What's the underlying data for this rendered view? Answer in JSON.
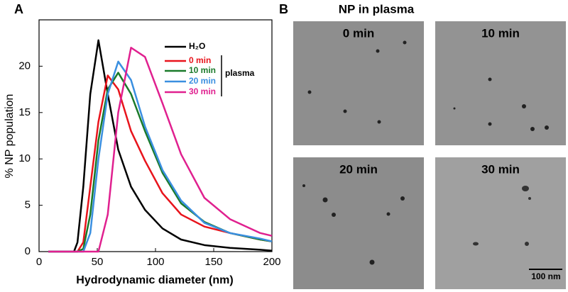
{
  "panel_labels": [
    "A",
    "B"
  ],
  "chart_data": {
    "type": "line",
    "xlabel": "Hydrodynamic diameter (nm)",
    "ylabel": "% NP population",
    "x": [
      8,
      20,
      30,
      33,
      38,
      44,
      51,
      59,
      68,
      79,
      91,
      106,
      122,
      142,
      164,
      190,
      200
    ],
    "series": [
      {
        "name": "H₂O",
        "color": "#000000",
        "values": [
          0,
          0,
          0,
          1,
          7,
          17,
          22.8,
          17,
          11,
          7,
          4.5,
          2.5,
          1.3,
          0.7,
          0.4,
          0.2,
          0.1
        ]
      },
      {
        "name": "0 min",
        "color": "#e8141c",
        "values": [
          0,
          0,
          0,
          0,
          1,
          7,
          14,
          19,
          17.5,
          13,
          9.8,
          6.3,
          4,
          2.7,
          2,
          1.3,
          1.1
        ]
      },
      {
        "name": "10 min",
        "color": "#1a7a2a",
        "values": [
          0,
          0,
          0,
          0,
          0.3,
          4,
          12,
          17.5,
          19.3,
          17,
          13,
          8.5,
          5.2,
          3.2,
          2,
          1.3,
          1.1
        ]
      },
      {
        "name": "20 min",
        "color": "#3a8fe0",
        "values": [
          0,
          0,
          0,
          0,
          0,
          2,
          10,
          17,
          20.5,
          18.5,
          13.5,
          8.8,
          5.5,
          3.1,
          2,
          1.4,
          1.1
        ]
      },
      {
        "name": "30 min",
        "color": "#e0208f",
        "values": [
          0,
          0,
          0,
          0,
          0,
          0,
          0,
          4,
          15,
          22,
          21,
          16,
          10.5,
          5.8,
          3.5,
          2,
          1.7
        ]
      }
    ],
    "legend_group": "plasma",
    "xlim": [
      0,
      200
    ],
    "xticks": [
      0,
      50,
      100,
      150,
      200
    ],
    "ylim": [
      0,
      25
    ],
    "yticks": [
      0,
      5,
      10,
      15,
      20
    ]
  },
  "micrographs": {
    "title": "NP in plasma",
    "labels": [
      "0 min",
      "10 min",
      "20 min",
      "30 min"
    ],
    "scale_bar": "100 nm"
  }
}
